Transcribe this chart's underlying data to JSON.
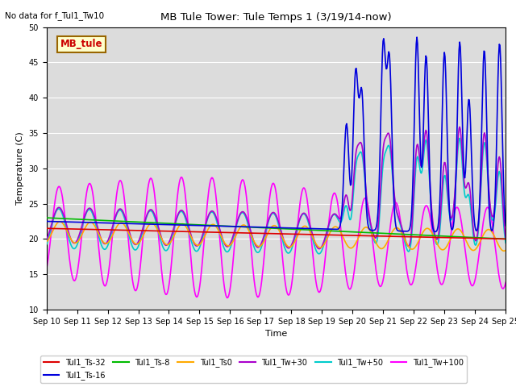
{
  "title": "MB Tule Tower: Tule Temps 1 (3/19/14-now)",
  "subtitle": "No data for f_Tul1_Tw10",
  "xlabel": "Time",
  "ylabel": "Temperature (C)",
  "ylim": [
    10,
    50
  ],
  "yticks": [
    10,
    15,
    20,
    25,
    30,
    35,
    40,
    45,
    50
  ],
  "xtick_labels": [
    "Sep 10",
    "Sep 11",
    "Sep 12",
    "Sep 13",
    "Sep 14",
    "Sep 15",
    "Sep 16",
    "Sep 17",
    "Sep 18",
    "Sep 19",
    "Sep 20",
    "Sep 21",
    "Sep 22",
    "Sep 23",
    "Sep 24",
    "Sep 25"
  ],
  "legend_label": "MB_tule",
  "legend_bg": "#ffffcc",
  "legend_border": "#996600",
  "legend_text_color": "#cc0000",
  "bg_color": "#dcdcdc",
  "series": {
    "Tul1_Ts-32": {
      "color": "#dd0000",
      "lw": 1.2
    },
    "Tul1_Ts-16": {
      "color": "#0000dd",
      "lw": 1.2
    },
    "Tul1_Ts-8": {
      "color": "#00bb00",
      "lw": 1.2
    },
    "Tul1_Ts0": {
      "color": "#ffaa00",
      "lw": 1.2
    },
    "Tul1_Tw+30": {
      "color": "#aa00cc",
      "lw": 1.2
    },
    "Tul1_Tw+50": {
      "color": "#00cccc",
      "lw": 1.2
    },
    "Tul1_Tw+100": {
      "color": "#ff00ff",
      "lw": 1.2
    }
  }
}
